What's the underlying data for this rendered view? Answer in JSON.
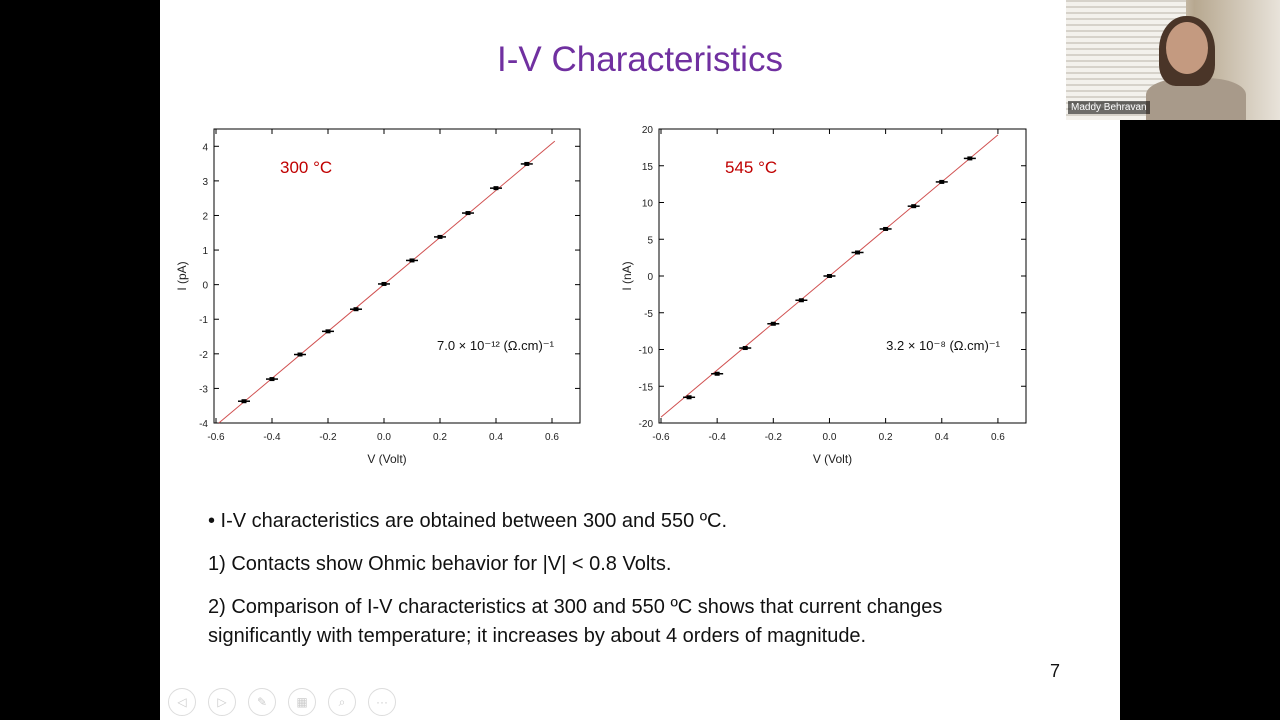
{
  "slide": {
    "title": "I-V Characteristics",
    "bullets": [
      "•   I-V characteristics are obtained between 300 and 550 ºC.",
      "1)  Contacts show Ohmic behavior for |V| < 0.8 Volts.",
      "2)  Comparison of I-V characteristics at 300 and 550 ºC shows that current changes significantly with temperature; it increases by about 4 orders of magnitude."
    ],
    "page_number": "7",
    "controls": [
      "previous-icon",
      "next-icon",
      "pen-icon",
      "slides-icon",
      "zoom-icon",
      "more-icon"
    ]
  },
  "video": {
    "participant_name": "Maddy Behravan"
  },
  "chart_data": [
    {
      "type": "scatter",
      "annotation": "300 °C",
      "annotation_color": "#c00000",
      "conductivity_label": "7.0 × 10⁻¹² (Ω.cm)⁻¹",
      "xlabel": "V (Volt)",
      "ylabel": "I (pA)",
      "xlim": [
        -0.6,
        0.7
      ],
      "ylim": [
        -4,
        4.5
      ],
      "xticks": [
        "-0.6",
        "-0.4",
        "-0.2",
        "0.0",
        "0.2",
        "0.4",
        "0.6"
      ],
      "yticks": [
        "-4",
        "-3",
        "-2",
        "-1",
        "0",
        "1",
        "2",
        "3",
        "4"
      ],
      "x": [
        -0.5,
        -0.4,
        -0.3,
        -0.2,
        -0.1,
        0.0,
        0.1,
        0.2,
        0.3,
        0.4,
        0.51
      ],
      "y": [
        -3.37,
        -2.73,
        -2.02,
        -1.35,
        -0.71,
        0.02,
        0.7,
        1.38,
        2.07,
        2.79,
        3.49
      ],
      "fit": {
        "x": [
          -0.59,
          0.61
        ],
        "y": [
          -4.0,
          4.15
        ],
        "color": "#d05050"
      }
    },
    {
      "type": "scatter",
      "annotation": "545 °C",
      "annotation_color": "#c00000",
      "conductivity_label": "3.2 × 10⁻⁸ (Ω.cm)⁻¹",
      "xlabel": "V (Volt)",
      "ylabel": "I (nA)",
      "xlim": [
        -0.6,
        0.7
      ],
      "ylim": [
        -20,
        20
      ],
      "xticks": [
        "-0.6",
        "-0.4",
        "-0.2",
        "0.0",
        "0.2",
        "0.4",
        "0.6"
      ],
      "yticks": [
        "-20",
        "-15",
        "-10",
        "-5",
        "0",
        "5",
        "10",
        "15",
        "20"
      ],
      "x": [
        -0.5,
        -0.4,
        -0.3,
        -0.2,
        -0.1,
        0.0,
        0.1,
        0.2,
        0.3,
        0.4,
        0.5
      ],
      "y": [
        -16.5,
        -13.3,
        -9.8,
        -6.5,
        -3.3,
        0.0,
        3.2,
        6.4,
        9.5,
        12.8,
        16.0
      ],
      "fit": {
        "x": [
          -0.6,
          0.6
        ],
        "y": [
          -19.2,
          19.2
        ],
        "color": "#d05050"
      }
    }
  ]
}
